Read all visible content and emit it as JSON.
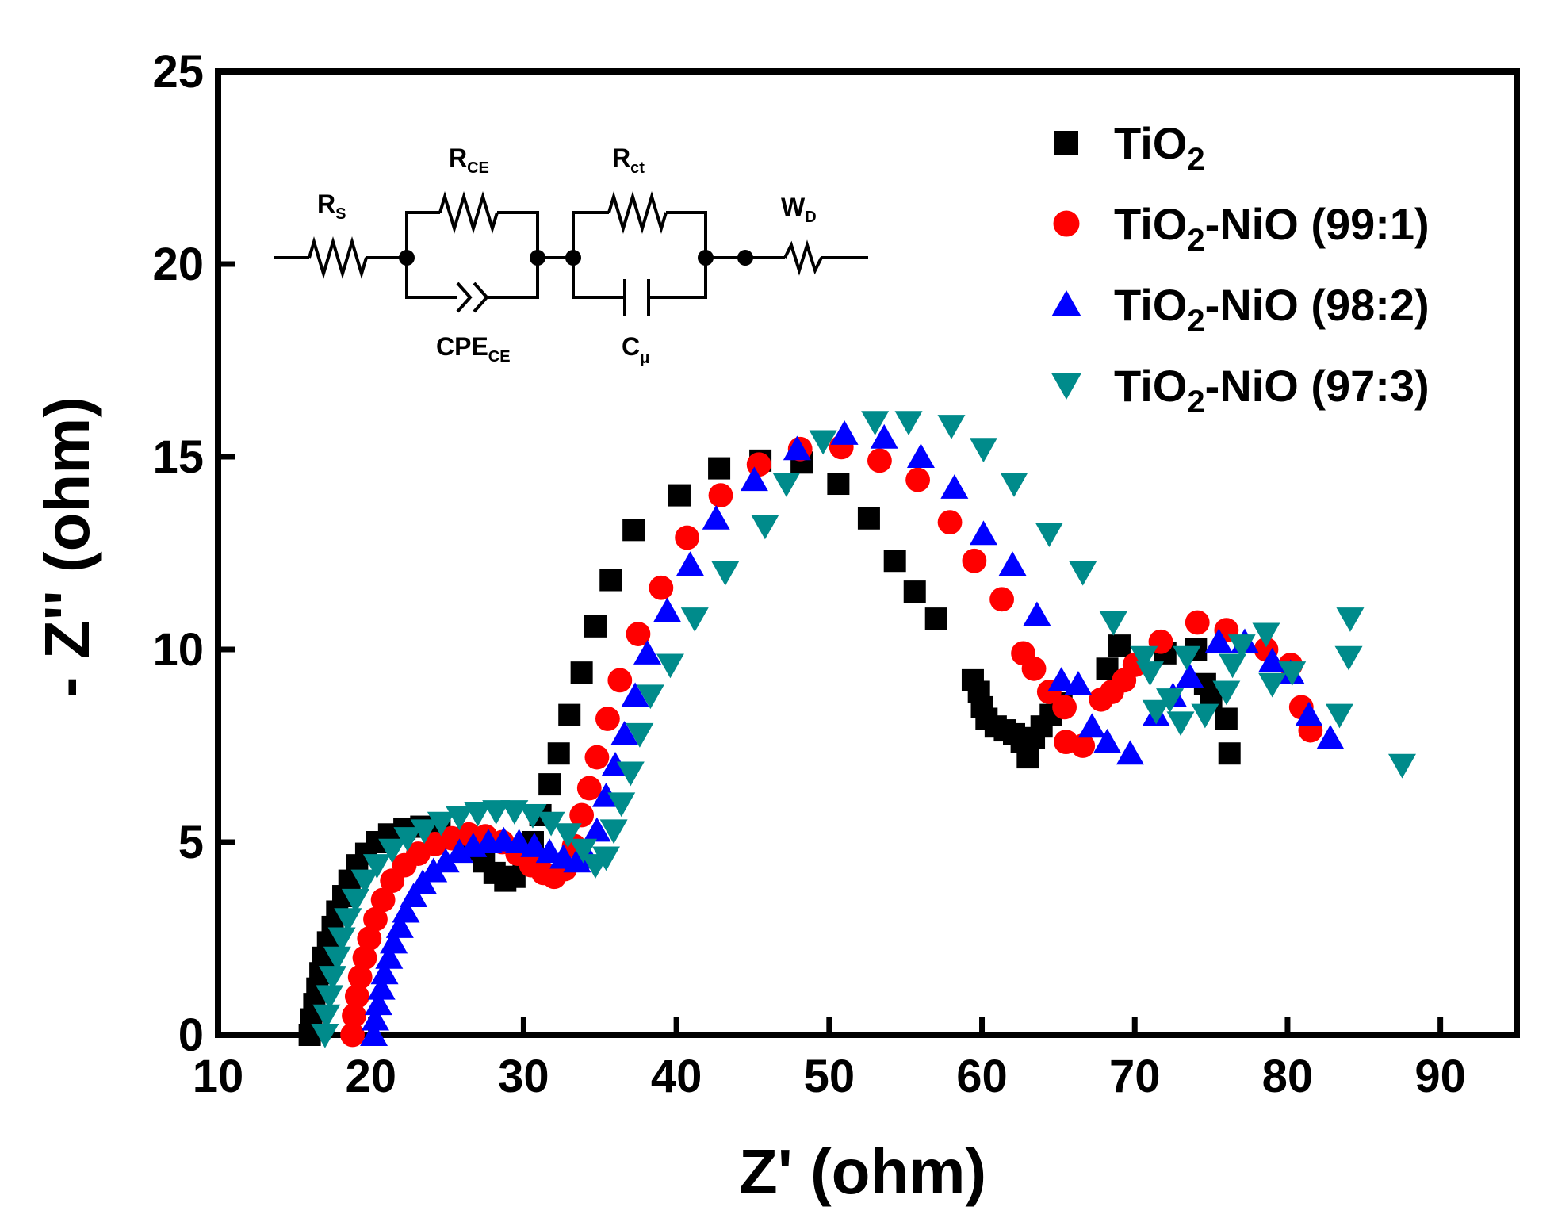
{
  "chart_data": {
    "type": "scatter",
    "title": "",
    "xlabel": "Z' (ohm)",
    "ylabel": "- Z'' (ohm)",
    "xlim": [
      10,
      95
    ],
    "ylim": [
      0,
      25
    ],
    "xticks": [
      10,
      20,
      30,
      40,
      50,
      60,
      70,
      80,
      90
    ],
    "yticks": [
      0,
      5,
      10,
      15,
      20,
      25
    ],
    "legend_position": "top-right",
    "series": [
      {
        "name": "TiO2",
        "base": "TiO",
        "sub": "2",
        "suffix": "",
        "marker": "square",
        "color": "#000000",
        "points": [
          [
            16.0,
            0.0
          ],
          [
            16.1,
            0.4
          ],
          [
            16.3,
            0.8
          ],
          [
            16.5,
            1.2
          ],
          [
            16.7,
            1.6
          ],
          [
            16.9,
            2.0
          ],
          [
            17.2,
            2.4
          ],
          [
            17.5,
            2.8
          ],
          [
            17.8,
            3.2
          ],
          [
            18.2,
            3.6
          ],
          [
            18.6,
            4.0
          ],
          [
            19.1,
            4.4
          ],
          [
            19.7,
            4.7
          ],
          [
            20.4,
            5.0
          ],
          [
            21.2,
            5.2
          ],
          [
            22.2,
            5.35
          ],
          [
            23.3,
            5.4
          ],
          [
            24.5,
            5.3
          ],
          [
            25.6,
            5.1
          ],
          [
            26.6,
            4.8
          ],
          [
            27.4,
            4.5
          ],
          [
            28.1,
            4.2
          ],
          [
            28.8,
            4.0
          ],
          [
            29.4,
            4.1
          ],
          [
            30.0,
            4.5
          ],
          [
            30.6,
            5.0
          ],
          [
            31.1,
            5.7
          ],
          [
            31.7,
            6.5
          ],
          [
            32.3,
            7.3
          ],
          [
            33.0,
            8.3
          ],
          [
            33.8,
            9.4
          ],
          [
            34.7,
            10.6
          ],
          [
            35.7,
            11.8
          ],
          [
            37.2,
            13.1
          ],
          [
            40.2,
            14.0
          ],
          [
            42.8,
            14.7
          ],
          [
            45.5,
            14.9
          ],
          [
            48.2,
            14.85
          ],
          [
            50.6,
            14.3
          ],
          [
            52.6,
            13.4
          ],
          [
            54.3,
            12.3
          ],
          [
            55.6,
            11.5
          ],
          [
            57.0,
            10.8
          ],
          [
            59.4,
            9.2
          ],
          [
            59.8,
            8.9
          ],
          [
            60.0,
            8.5
          ],
          [
            60.3,
            8.2
          ],
          [
            60.9,
            8.0
          ],
          [
            61.5,
            7.9
          ],
          [
            62.1,
            7.8
          ],
          [
            62.6,
            7.6
          ],
          [
            63.0,
            7.2
          ],
          [
            63.4,
            7.7
          ],
          [
            63.9,
            8.0
          ],
          [
            64.5,
            8.3
          ],
          [
            65.2,
            8.6
          ],
          [
            68.2,
            9.5
          ],
          [
            69.0,
            10.1
          ],
          [
            72.0,
            9.9
          ],
          [
            74.0,
            10.0
          ],
          [
            74.6,
            9.1
          ],
          [
            75.0,
            8.7
          ],
          [
            76.0,
            8.2
          ],
          [
            76.2,
            7.3
          ]
        ]
      },
      {
        "name": "TiO2-NiO (99:1)",
        "base": "TiO",
        "sub": "2",
        "suffix": "-NiO (99:1)",
        "marker": "circle",
        "color": "#ff0000",
        "points": [
          [
            18.8,
            0.0
          ],
          [
            18.9,
            0.5
          ],
          [
            19.1,
            1.0
          ],
          [
            19.3,
            1.5
          ],
          [
            19.6,
            2.0
          ],
          [
            19.9,
            2.5
          ],
          [
            20.3,
            3.0
          ],
          [
            20.8,
            3.5
          ],
          [
            21.4,
            4.0
          ],
          [
            22.2,
            4.4
          ],
          [
            23.1,
            4.7
          ],
          [
            24.2,
            4.95
          ],
          [
            25.3,
            5.1
          ],
          [
            26.4,
            5.2
          ],
          [
            27.5,
            5.15
          ],
          [
            28.6,
            5.0
          ],
          [
            29.6,
            4.7
          ],
          [
            30.5,
            4.4
          ],
          [
            31.3,
            4.2
          ],
          [
            32.0,
            4.1
          ],
          [
            32.7,
            4.3
          ],
          [
            33.3,
            4.9
          ],
          [
            33.8,
            5.7
          ],
          [
            34.3,
            6.4
          ],
          [
            34.8,
            7.2
          ],
          [
            35.5,
            8.2
          ],
          [
            36.3,
            9.2
          ],
          [
            37.5,
            10.4
          ],
          [
            39.0,
            11.6
          ],
          [
            40.7,
            12.9
          ],
          [
            42.9,
            14.0
          ],
          [
            45.4,
            14.8
          ],
          [
            48.1,
            15.2
          ],
          [
            50.8,
            15.25
          ],
          [
            53.3,
            14.9
          ],
          [
            55.8,
            14.4
          ],
          [
            57.9,
            13.3
          ],
          [
            59.5,
            12.3
          ],
          [
            61.3,
            11.3
          ],
          [
            62.7,
            9.9
          ],
          [
            63.4,
            9.5
          ],
          [
            64.4,
            8.9
          ],
          [
            65.4,
            8.5
          ],
          [
            65.5,
            7.6
          ],
          [
            66.6,
            7.5
          ],
          [
            67.8,
            8.7
          ],
          [
            68.5,
            8.9
          ],
          [
            69.3,
            9.2
          ],
          [
            70.0,
            9.6
          ],
          [
            71.7,
            10.2
          ],
          [
            74.1,
            10.7
          ],
          [
            76.0,
            10.5
          ],
          [
            78.6,
            10.0
          ],
          [
            80.2,
            9.6
          ],
          [
            80.9,
            8.5
          ],
          [
            81.5,
            7.9
          ]
        ]
      },
      {
        "name": "TiO2-NiO (98:2)",
        "base": "TiO",
        "sub": "2",
        "suffix": "-NiO (98:2)",
        "marker": "triangle-up",
        "color": "#0000ff",
        "points": [
          [
            20.2,
            0.0
          ],
          [
            20.3,
            0.4
          ],
          [
            20.5,
            0.8
          ],
          [
            20.7,
            1.2
          ],
          [
            20.9,
            1.6
          ],
          [
            21.2,
            2.0
          ],
          [
            21.5,
            2.4
          ],
          [
            21.9,
            2.8
          ],
          [
            22.3,
            3.2
          ],
          [
            22.8,
            3.6
          ],
          [
            23.4,
            3.95
          ],
          [
            24.1,
            4.25
          ],
          [
            24.9,
            4.5
          ],
          [
            25.8,
            4.75
          ],
          [
            26.7,
            4.9
          ],
          [
            27.7,
            5.0
          ],
          [
            28.7,
            5.05
          ],
          [
            29.7,
            5.0
          ],
          [
            30.7,
            4.9
          ],
          [
            31.7,
            4.75
          ],
          [
            32.6,
            4.6
          ],
          [
            33.5,
            4.5
          ],
          [
            34.2,
            4.6
          ],
          [
            34.8,
            5.3
          ],
          [
            35.4,
            6.2
          ],
          [
            36.0,
            7.0
          ],
          [
            36.6,
            7.8
          ],
          [
            37.3,
            8.8
          ],
          [
            38.1,
            9.9
          ],
          [
            39.4,
            11.0
          ],
          [
            40.9,
            12.2
          ],
          [
            42.6,
            13.4
          ],
          [
            45.1,
            14.4
          ],
          [
            47.9,
            15.2
          ],
          [
            51.0,
            15.6
          ],
          [
            53.6,
            15.5
          ],
          [
            56.0,
            15.0
          ],
          [
            58.2,
            14.2
          ],
          [
            60.1,
            13.0
          ],
          [
            62.0,
            12.2
          ],
          [
            63.6,
            10.9
          ],
          [
            65.2,
            9.2
          ],
          [
            66.3,
            9.1
          ],
          [
            67.2,
            8.0
          ],
          [
            68.2,
            7.6
          ],
          [
            69.7,
            7.3
          ],
          [
            71.4,
            8.3
          ],
          [
            72.5,
            8.8
          ],
          [
            73.6,
            9.3
          ],
          [
            75.5,
            10.2
          ],
          [
            77.2,
            10.2
          ],
          [
            79.0,
            9.7
          ],
          [
            80.2,
            9.4
          ],
          [
            81.4,
            8.3
          ],
          [
            82.8,
            7.7
          ]
        ]
      },
      {
        "name": "TiO2-NiO (97:3)",
        "base": "TiO",
        "sub": "2",
        "suffix": "-NiO (97:3)",
        "marker": "triangle-down",
        "color": "#008b8b",
        "points": [
          [
            17.0,
            0.0
          ],
          [
            17.1,
            0.5
          ],
          [
            17.3,
            1.0
          ],
          [
            17.5,
            1.5
          ],
          [
            17.8,
            2.0
          ],
          [
            18.1,
            2.5
          ],
          [
            18.5,
            3.0
          ],
          [
            19.0,
            3.5
          ],
          [
            19.6,
            4.0
          ],
          [
            20.4,
            4.4
          ],
          [
            21.4,
            4.8
          ],
          [
            22.4,
            5.1
          ],
          [
            23.5,
            5.3
          ],
          [
            24.6,
            5.5
          ],
          [
            25.8,
            5.65
          ],
          [
            27.0,
            5.75
          ],
          [
            28.2,
            5.8
          ],
          [
            29.4,
            5.8
          ],
          [
            30.6,
            5.7
          ],
          [
            31.8,
            5.5
          ],
          [
            32.9,
            5.2
          ],
          [
            33.9,
            4.8
          ],
          [
            34.7,
            4.4
          ],
          [
            35.4,
            4.6
          ],
          [
            35.9,
            5.3
          ],
          [
            36.4,
            6.0
          ],
          [
            37.0,
            6.8
          ],
          [
            37.6,
            7.8
          ],
          [
            38.3,
            8.8
          ],
          [
            39.6,
            9.6
          ],
          [
            41.2,
            10.8
          ],
          [
            43.2,
            12.0
          ],
          [
            45.8,
            13.2
          ],
          [
            47.2,
            14.3
          ],
          [
            49.6,
            15.4
          ],
          [
            53.0,
            15.9
          ],
          [
            55.2,
            15.9
          ],
          [
            58.0,
            15.8
          ],
          [
            60.1,
            15.2
          ],
          [
            62.1,
            14.3
          ],
          [
            64.4,
            13.0
          ],
          [
            66.6,
            12.0
          ],
          [
            68.6,
            10.7
          ],
          [
            70.6,
            9.8
          ],
          [
            71.0,
            9.4
          ],
          [
            71.4,
            8.4
          ],
          [
            72.3,
            8.7
          ],
          [
            73.0,
            8.1
          ],
          [
            73.4,
            9.8
          ],
          [
            74.6,
            8.3
          ],
          [
            76.0,
            8.9
          ],
          [
            76.4,
            9.6
          ],
          [
            77.0,
            10.1
          ],
          [
            78.6,
            10.4
          ],
          [
            79.0,
            9.1
          ],
          [
            80.3,
            9.4
          ],
          [
            83.4,
            8.3
          ],
          [
            84.1,
            10.8
          ],
          [
            84.0,
            9.8
          ],
          [
            87.5,
            7.0
          ]
        ]
      }
    ]
  },
  "circuit": {
    "rs": {
      "main": "R",
      "sub": "S"
    },
    "rce": {
      "main": "R",
      "sub": "CE"
    },
    "cpe": {
      "main": "CPE",
      "sub": "CE"
    },
    "rct": {
      "main": "R",
      "sub": "ct"
    },
    "cmu": {
      "main": "C",
      "sub": "μ"
    },
    "wd": {
      "main": "W",
      "sub": "D"
    }
  }
}
